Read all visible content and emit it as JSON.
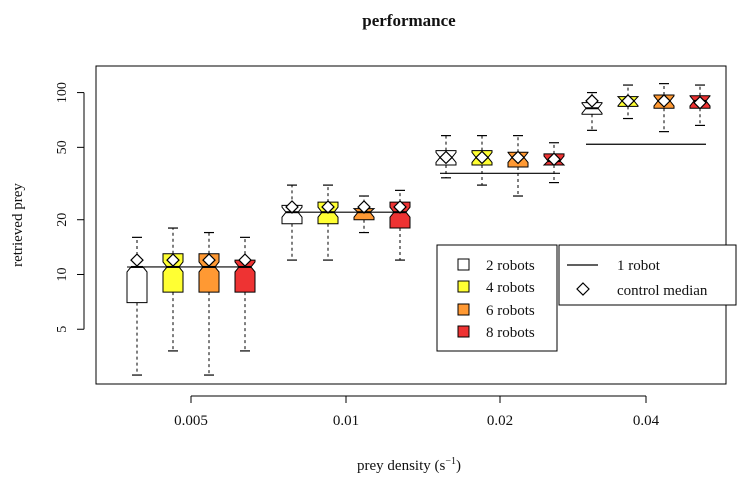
{
  "chart_data": {
    "type": "boxplot",
    "title": "performance",
    "xlabel": "prey density (s",
    "xlabel_sup": "−1",
    "xlabel_close": ")",
    "ylabel": "retrieved prey",
    "y_scale": "log",
    "ylim": [
      2.5,
      140
    ],
    "y_ticks": [
      5,
      10,
      20,
      50,
      100
    ],
    "categories": [
      "0.005",
      "0.01",
      "0.02",
      "0.04"
    ],
    "series": [
      {
        "name": "2 robots",
        "color": "#ffffff",
        "boxes": [
          {
            "whisker_low": 2.8,
            "q1": 7,
            "median": 11,
            "q3": 11,
            "whisker_high": 16,
            "control_median": 12
          },
          {
            "whisker_low": 12,
            "q1": 19,
            "median": 22,
            "q3": 24,
            "whisker_high": 31,
            "control_median": 23.5
          },
          {
            "whisker_low": 34,
            "q1": 40,
            "median": 44,
            "q3": 48,
            "whisker_high": 58,
            "control_median": 44
          },
          {
            "whisker_low": 62,
            "q1": 76,
            "median": 82,
            "q3": 88,
            "whisker_high": 100,
            "control_median": 90
          }
        ]
      },
      {
        "name": "4 robots",
        "color": "#ffff33",
        "boxes": [
          {
            "whisker_low": 3.8,
            "q1": 8,
            "median": 11,
            "q3": 13,
            "whisker_high": 18,
            "control_median": 12
          },
          {
            "whisker_low": 12,
            "q1": 19,
            "median": 22,
            "q3": 25,
            "whisker_high": 31,
            "control_median": 23.5
          },
          {
            "whisker_low": 31,
            "q1": 40,
            "median": 44,
            "q3": 48,
            "whisker_high": 58,
            "control_median": 44
          },
          {
            "whisker_low": 72,
            "q1": 84,
            "median": 90,
            "q3": 95,
            "whisker_high": 110,
            "control_median": 90
          }
        ]
      },
      {
        "name": "6 robots",
        "color": "#ff9933",
        "boxes": [
          {
            "whisker_low": 2.8,
            "q1": 8,
            "median": 11,
            "q3": 13,
            "whisker_high": 17,
            "control_median": 12
          },
          {
            "whisker_low": 17,
            "q1": 20,
            "median": 22,
            "q3": 23,
            "whisker_high": 27,
            "control_median": 23.5
          },
          {
            "whisker_low": 27,
            "q1": 39,
            "median": 44,
            "q3": 47,
            "whisker_high": 58,
            "control_median": 44
          },
          {
            "whisker_low": 61,
            "q1": 82,
            "median": 90,
            "q3": 97,
            "whisker_high": 112,
            "control_median": 90
          }
        ]
      },
      {
        "name": "8 robots",
        "color": "#ee3333",
        "boxes": [
          {
            "whisker_low": 3.8,
            "q1": 8,
            "median": 11,
            "q3": 12,
            "whisker_high": 16,
            "control_median": 12
          },
          {
            "whisker_low": 12,
            "q1": 18,
            "median": 22,
            "q3": 25,
            "whisker_high": 29,
            "control_median": 23.5
          },
          {
            "whisker_low": 32,
            "q1": 40,
            "median": 42,
            "q3": 46,
            "whisker_high": 53,
            "control_median": 43
          },
          {
            "whisker_low": 66,
            "q1": 82,
            "median": 90,
            "q3": 96,
            "whisker_high": 110,
            "control_median": 88
          }
        ]
      }
    ],
    "one_robot_line": [
      11,
      22,
      36,
      52
    ],
    "legend": {
      "boxes": [
        "2 robots",
        "4 robots",
        "6 robots",
        "8 robots"
      ],
      "lines": [
        "1 robot",
        "control median"
      ]
    }
  }
}
